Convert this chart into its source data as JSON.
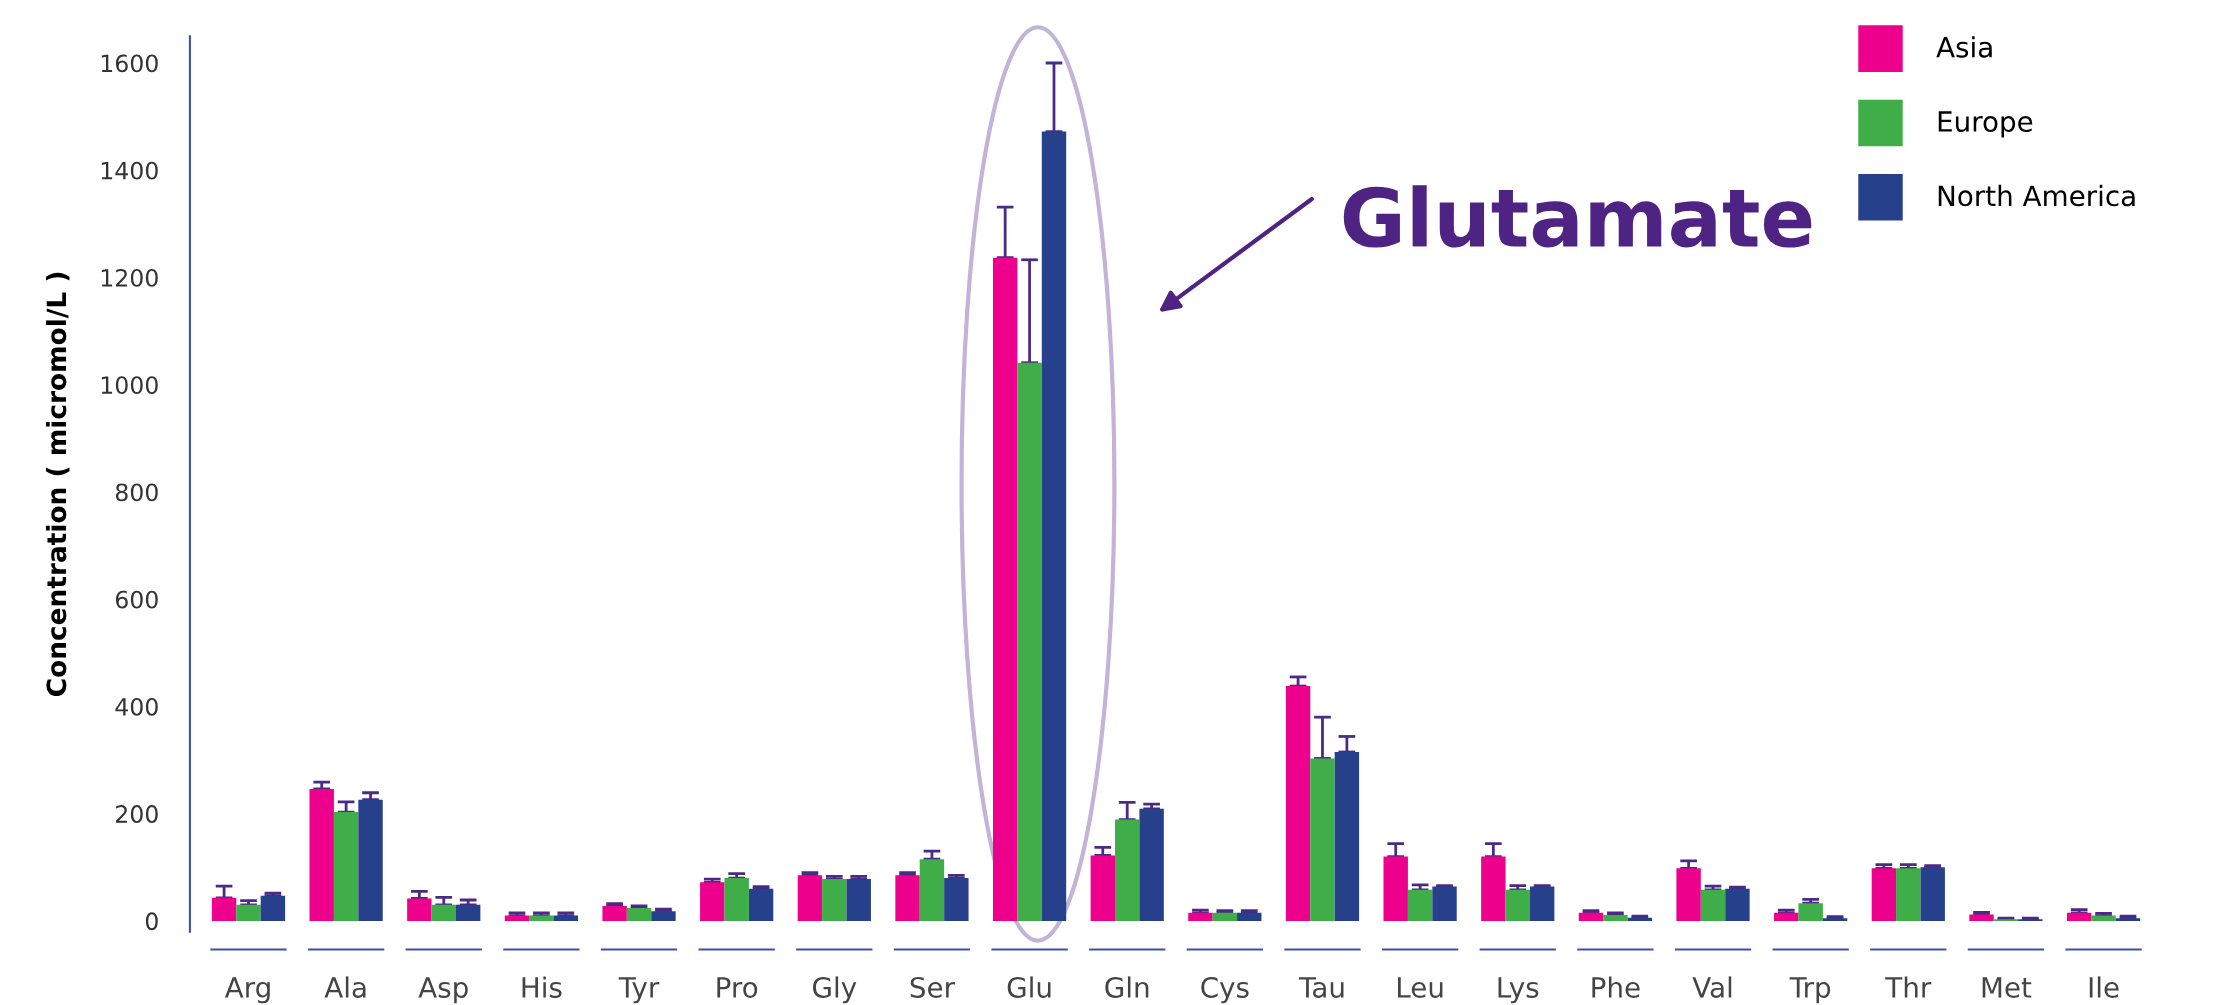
{
  "chart_data": {
    "type": "bar",
    "ylabel": "Concentration ( micromol/L )",
    "categories": [
      "Arg",
      "Ala",
      "Asp",
      "His",
      "Tyr",
      "Pro",
      "Gly",
      "Ser",
      "Glu",
      "Gln",
      "Cys",
      "Tau",
      "Leu",
      "Lys",
      "Phe",
      "Val",
      "Trp",
      "Thr",
      "Met",
      "Ile"
    ],
    "series": [
      {
        "name": "Asia",
        "color": "#ec008c",
        "values": [
          43,
          246,
          42,
          10,
          28,
          72,
          85,
          85,
          1237,
          122,
          15,
          438,
          120,
          120,
          15,
          98,
          15,
          98,
          12,
          15
        ],
        "errors": [
          [
            43,
            65
          ],
          [
            246,
            259
          ],
          [
            42,
            55
          ],
          [
            10,
            15
          ],
          [
            28,
            32
          ],
          [
            72,
            78
          ],
          [
            85,
            90
          ],
          [
            85,
            90
          ],
          [
            1237,
            1331
          ],
          [
            122,
            137
          ],
          [
            15,
            20
          ],
          [
            438,
            455
          ],
          [
            120,
            144
          ],
          [
            120,
            144
          ],
          [
            15,
            19
          ],
          [
            98,
            112
          ],
          [
            15,
            20
          ],
          [
            98,
            105
          ],
          [
            12,
            16
          ],
          [
            15,
            21
          ]
        ]
      },
      {
        "name": "Europe",
        "color": "#3fae49",
        "values": [
          30,
          203,
          30,
          10,
          24,
          80,
          78,
          115,
          1041,
          189,
          15,
          303,
          58,
          58,
          11,
          58,
          33,
          98,
          3,
          10
        ],
        "errors": [
          [
            30,
            38
          ],
          [
            203,
            222
          ],
          [
            30,
            44
          ],
          [
            10,
            15
          ],
          [
            24,
            28
          ],
          [
            80,
            88
          ],
          [
            78,
            83
          ],
          [
            115,
            130
          ],
          [
            1041,
            1233
          ],
          [
            189,
            221
          ],
          [
            15,
            19
          ],
          [
            303,
            380
          ],
          [
            58,
            67
          ],
          [
            58,
            66
          ],
          [
            11,
            15
          ],
          [
            58,
            65
          ],
          [
            33,
            40
          ],
          [
            98,
            105
          ],
          [
            3,
            5
          ],
          [
            10,
            14
          ]
        ]
      },
      {
        "name": "North America",
        "color": "#27408b",
        "values": [
          47,
          226,
          30,
          10,
          18,
          60,
          78,
          80,
          1472,
          209,
          15,
          315,
          64,
          64,
          6,
          60,
          5,
          100,
          3,
          5
        ],
        "errors": [
          [
            47,
            52
          ],
          [
            226,
            239
          ],
          [
            30,
            39
          ],
          [
            10,
            15
          ],
          [
            18,
            22
          ],
          [
            60,
            64
          ],
          [
            78,
            83
          ],
          [
            80,
            85
          ],
          [
            1472,
            1600
          ],
          [
            209,
            218
          ],
          [
            15,
            19
          ],
          [
            315,
            344
          ],
          [
            64,
            66
          ],
          [
            64,
            66
          ],
          [
            6,
            9
          ],
          [
            60,
            63
          ],
          [
            5,
            8
          ],
          [
            100,
            103
          ],
          [
            3,
            5
          ],
          [
            5,
            9
          ]
        ]
      }
    ],
    "ylim": [
      -20,
      1650
    ],
    "yticks": [
      0,
      200,
      400,
      600,
      800,
      1000,
      1200,
      1400,
      1600
    ],
    "grid": false,
    "legend": "top right",
    "annotations": [
      "Glutamate"
    ]
  }
}
